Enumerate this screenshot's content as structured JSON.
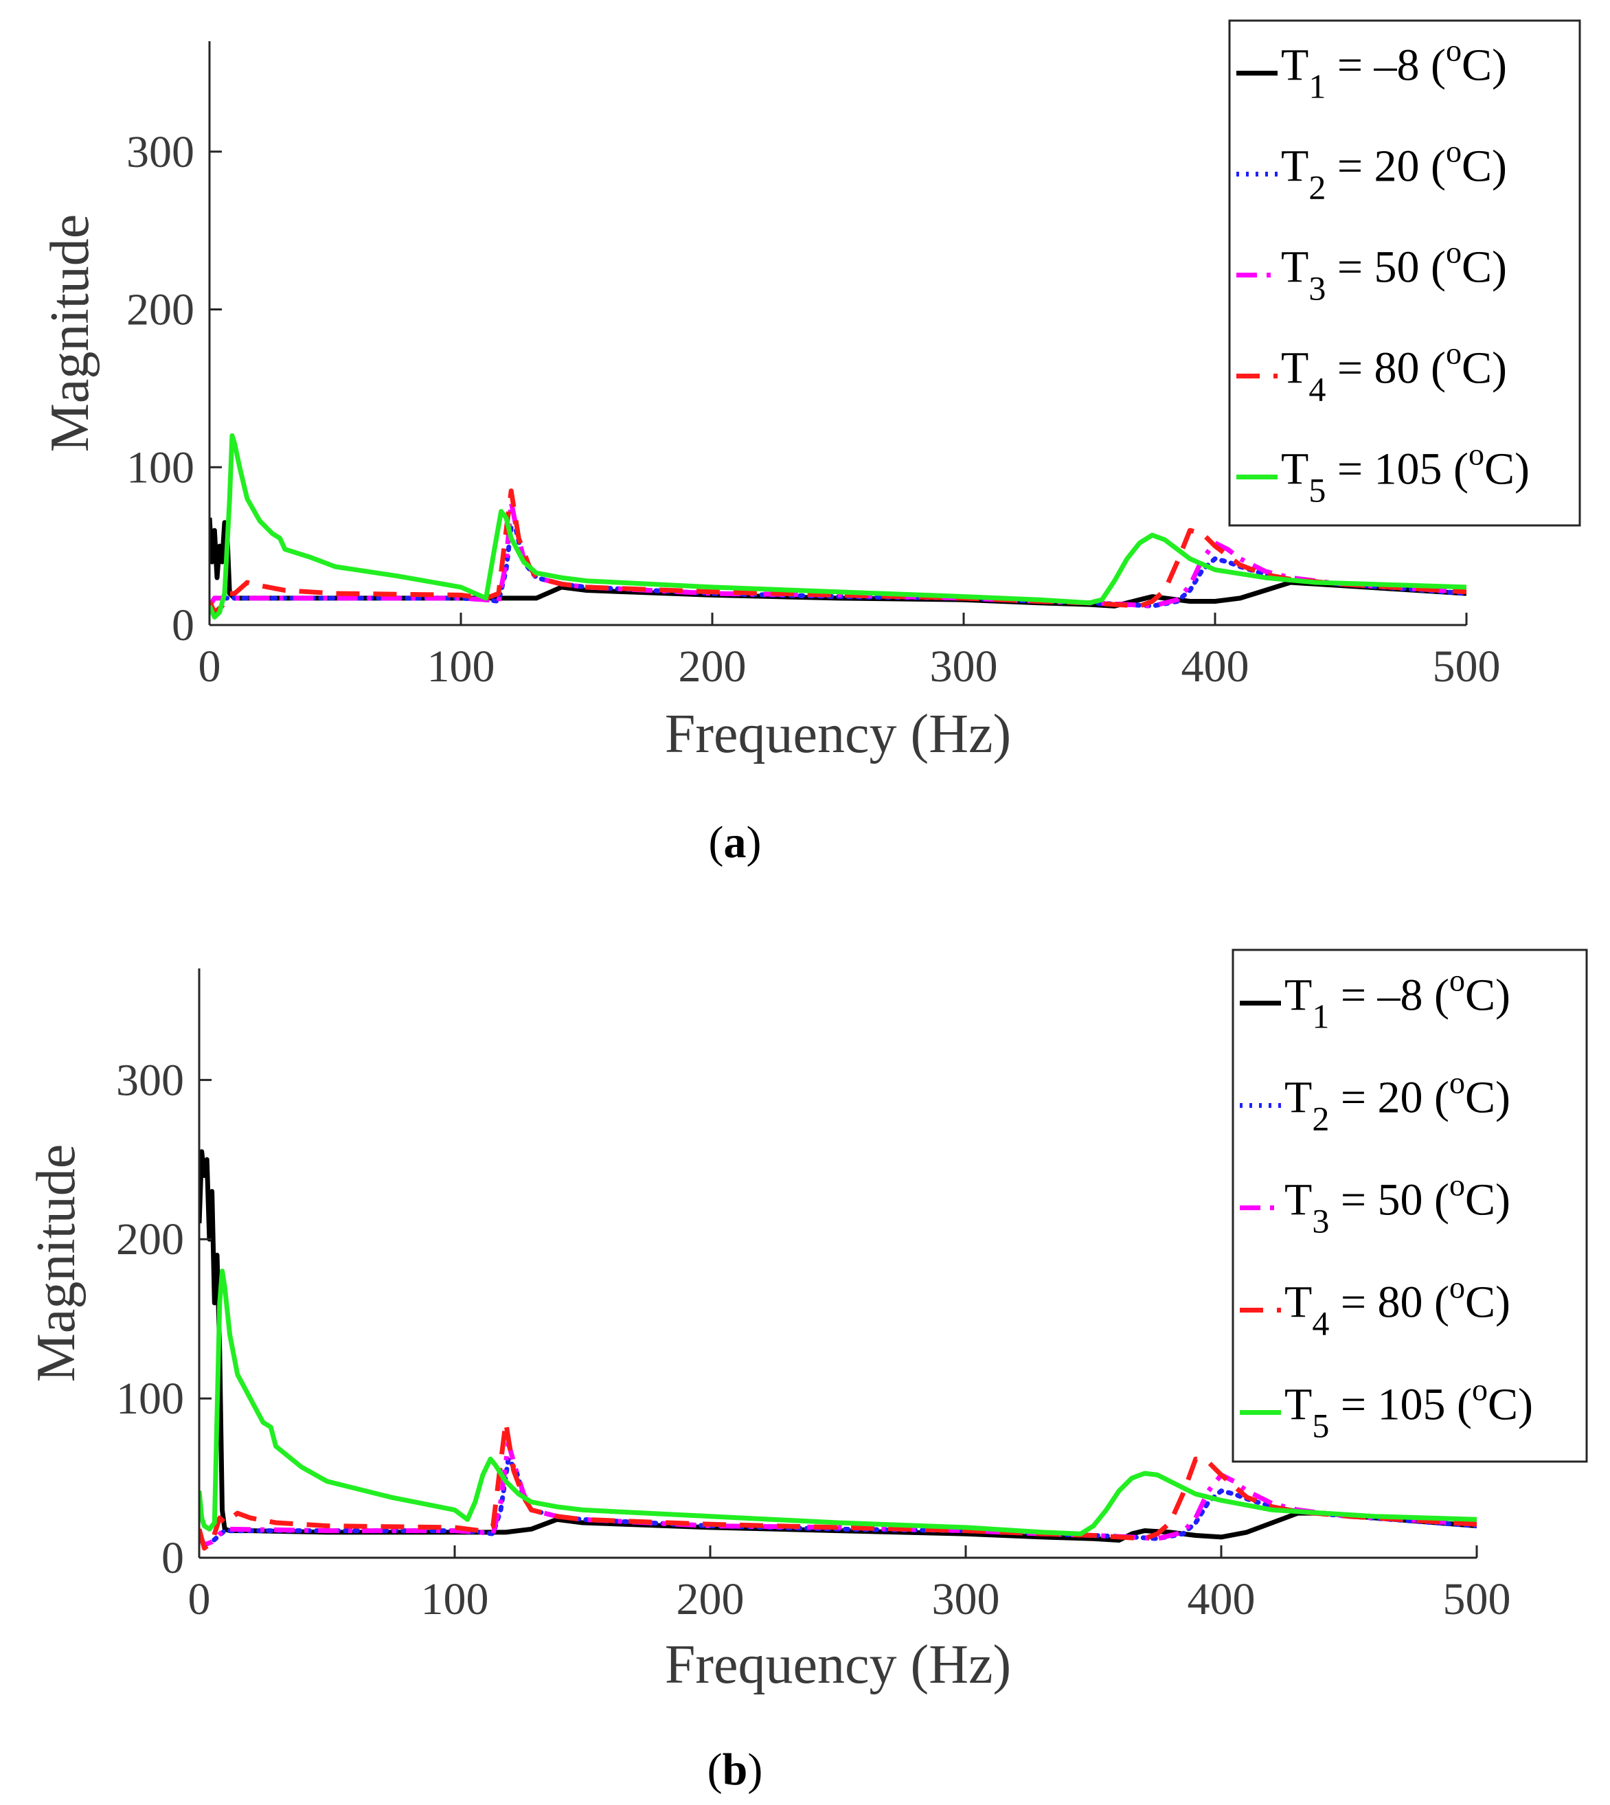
{
  "chart_data": [
    {
      "type": "line",
      "panel": "a",
      "caption_open": "(",
      "caption_letter": "a",
      "caption_close": ")",
      "xlabel": "Frequency (Hz)",
      "ylabel": "Magnitude",
      "xlim": [
        0,
        500
      ],
      "ylim": [
        0,
        370
      ],
      "xticks": [
        0,
        100,
        200,
        300,
        400,
        500
      ],
      "yticks": [
        0,
        100,
        200,
        300
      ],
      "grid": false,
      "legend_position": "top-right",
      "series": [
        {
          "key": "t1",
          "legend_prefix": "T",
          "legend_sub": "1",
          "legend_mid": " = –8 (",
          "legend_sup": "o",
          "legend_suffix": "C)",
          "color": "#000000",
          "style": "solid",
          "x": [
            0,
            1,
            2,
            3,
            4,
            5,
            6,
            7,
            8,
            10,
            20,
            50,
            80,
            100,
            110,
            120,
            130,
            140,
            150,
            200,
            250,
            300,
            330,
            350,
            360,
            370,
            375,
            380,
            390,
            400,
            410,
            420,
            430,
            440,
            460,
            500
          ],
          "y": [
            68,
            40,
            60,
            30,
            50,
            40,
            65,
            58,
            20,
            17,
            17,
            17,
            17,
            17,
            17,
            17,
            17,
            24,
            22,
            19,
            17,
            16,
            14,
            13,
            12,
            16,
            18,
            17,
            15,
            15,
            17,
            22,
            27,
            26,
            24,
            20
          ]
        },
        {
          "key": "t2",
          "legend_prefix": "T",
          "legend_sub": "2",
          "legend_mid": " = 20 (",
          "legend_sup": "o",
          "legend_suffix": "C)",
          "color": "#1f1fff",
          "style": "dotted",
          "x": [
            0,
            2,
            5,
            10,
            50,
            100,
            110,
            115,
            118,
            120,
            122,
            125,
            130,
            140,
            150,
            200,
            250,
            300,
            330,
            350,
            365,
            375,
            385,
            390,
            395,
            400,
            405,
            410,
            420,
            430,
            450,
            500
          ],
          "y": [
            12,
            17,
            17,
            17,
            17,
            17,
            16,
            15,
            35,
            62,
            60,
            40,
            30,
            26,
            24,
            20,
            18,
            17,
            15,
            14,
            13,
            12,
            15,
            22,
            35,
            42,
            40,
            37,
            32,
            29,
            26,
            20
          ]
        },
        {
          "key": "t3",
          "legend_prefix": "T",
          "legend_sub": "3",
          "legend_mid": " = 50 (",
          "legend_sup": "o",
          "legend_suffix": "C)",
          "color": "#ff00ff",
          "style": "dashdot",
          "x": [
            0,
            2,
            5,
            10,
            50,
            100,
            110,
            115,
            118,
            120,
            122,
            125,
            130,
            140,
            150,
            200,
            250,
            300,
            330,
            350,
            365,
            375,
            385,
            390,
            395,
            400,
            405,
            410,
            420,
            430,
            450,
            500
          ],
          "y": [
            12,
            17,
            17,
            17,
            17,
            17,
            16,
            15,
            40,
            78,
            62,
            42,
            30,
            26,
            24,
            20,
            19,
            17,
            15,
            14,
            13,
            12,
            16,
            25,
            42,
            52,
            48,
            42,
            34,
            30,
            26,
            21
          ]
        },
        {
          "key": "t4",
          "legend_prefix": "T",
          "legend_sub": "4",
          "legend_mid": " = 80 (",
          "legend_sup": "o",
          "legend_suffix": "C)",
          "color": "#ff1a1a",
          "style": "dashed",
          "x": [
            0,
            2,
            5,
            8,
            10,
            15,
            20,
            30,
            50,
            100,
            110,
            115,
            118,
            120,
            123,
            127,
            130,
            140,
            150,
            200,
            250,
            300,
            330,
            350,
            360,
            370,
            375,
            380,
            385,
            390,
            395,
            400,
            410,
            420,
            430,
            450,
            500
          ],
          "y": [
            15,
            8,
            12,
            20,
            20,
            27,
            25,
            22,
            20,
            19,
            17,
            20,
            60,
            85,
            55,
            38,
            30,
            26,
            24,
            21,
            19,
            17,
            15,
            14,
            13,
            12,
            15,
            22,
            40,
            60,
            58,
            50,
            38,
            32,
            29,
            26,
            21
          ]
        },
        {
          "key": "t5",
          "legend_prefix": "T",
          "legend_sub": "5",
          "legend_mid": " = 105 (",
          "legend_sup": "o",
          "legend_suffix": "C)",
          "color": "#22ee22",
          "style": "solid",
          "x": [
            0,
            2,
            4,
            6,
            8,
            9,
            10,
            12,
            15,
            20,
            25,
            28,
            30,
            40,
            50,
            75,
            100,
            110,
            113,
            116,
            118,
            120,
            125,
            130,
            140,
            150,
            200,
            250,
            300,
            330,
            350,
            355,
            360,
            365,
            370,
            375,
            380,
            385,
            390,
            400,
            420,
            440,
            460,
            500
          ],
          "y": [
            12,
            5,
            8,
            20,
            80,
            120,
            115,
            100,
            80,
            66,
            58,
            55,
            48,
            43,
            37,
            31,
            24,
            17,
            45,
            72,
            68,
            55,
            40,
            33,
            30,
            28,
            24,
            21,
            18,
            16,
            14,
            16,
            28,
            42,
            52,
            57,
            54,
            48,
            42,
            35,
            30,
            27,
            26,
            24
          ]
        }
      ]
    },
    {
      "type": "line",
      "panel": "b",
      "caption_open": "(",
      "caption_letter": "b",
      "caption_close": ")",
      "xlabel": "Frequency (Hz)",
      "ylabel": "Magnitude",
      "xlim": [
        0,
        500
      ],
      "ylim": [
        0,
        370
      ],
      "xticks": [
        0,
        100,
        200,
        300,
        400,
        500
      ],
      "yticks": [
        0,
        100,
        200,
        300
      ],
      "grid": false,
      "legend_position": "top-right",
      "series": [
        {
          "key": "t1",
          "legend_prefix": "T",
          "legend_sub": "1",
          "legend_mid": " = –8 (",
          "legend_sup": "o",
          "legend_suffix": "C)",
          "color": "#000000",
          "style": "solid",
          "x": [
            0,
            1,
            2,
            3,
            4,
            5,
            6,
            7,
            8,
            9,
            10,
            12,
            20,
            50,
            80,
            100,
            110,
            120,
            130,
            140,
            150,
            200,
            250,
            300,
            330,
            350,
            360,
            365,
            370,
            380,
            390,
            400,
            410,
            420,
            430,
            440,
            460,
            500
          ],
          "y": [
            210,
            255,
            240,
            250,
            200,
            230,
            160,
            190,
            130,
            30,
            18,
            17,
            17,
            16,
            16,
            16,
            16,
            16,
            18,
            24,
            22,
            19,
            17,
            15,
            13,
            12,
            11,
            15,
            17,
            16,
            14,
            13,
            16,
            22,
            28,
            28,
            25,
            20
          ]
        },
        {
          "key": "t2",
          "legend_prefix": "T",
          "legend_sub": "2",
          "legend_mid": " = 20 (",
          "legend_sup": "o",
          "legend_suffix": "C)",
          "color": "#1f1fff",
          "style": "dotted",
          "x": [
            0,
            2,
            5,
            10,
            50,
            100,
            110,
            115,
            118,
            121,
            124,
            127,
            130,
            140,
            150,
            200,
            250,
            300,
            330,
            350,
            365,
            375,
            385,
            390,
            395,
            400,
            405,
            410,
            420,
            430,
            450,
            500
          ],
          "y": [
            12,
            8,
            10,
            17,
            17,
            17,
            16,
            15,
            30,
            62,
            55,
            38,
            30,
            26,
            24,
            20,
            18,
            17,
            15,
            14,
            13,
            12,
            15,
            22,
            35,
            42,
            40,
            37,
            32,
            29,
            26,
            20
          ]
        },
        {
          "key": "t3",
          "legend_prefix": "T",
          "legend_sub": "3",
          "legend_mid": " = 50 (",
          "legend_sup": "o",
          "legend_suffix": "C)",
          "color": "#ff00ff",
          "style": "dashdot",
          "x": [
            0,
            2,
            5,
            10,
            50,
            100,
            110,
            115,
            118,
            121,
            124,
            127,
            130,
            140,
            150,
            200,
            250,
            300,
            330,
            350,
            365,
            375,
            385,
            390,
            395,
            400,
            405,
            410,
            420,
            430,
            450,
            500
          ],
          "y": [
            15,
            8,
            10,
            18,
            17,
            17,
            16,
            15,
            35,
            72,
            55,
            40,
            30,
            26,
            24,
            20,
            19,
            17,
            15,
            14,
            13,
            12,
            16,
            25,
            42,
            52,
            48,
            42,
            34,
            30,
            26,
            21
          ]
        },
        {
          "key": "t4",
          "legend_prefix": "T",
          "legend_sub": "4",
          "legend_mid": " = 80 (",
          "legend_sup": "o",
          "legend_suffix": "C)",
          "color": "#ff1a1a",
          "style": "dashed",
          "x": [
            0,
            2,
            5,
            8,
            10,
            15,
            20,
            30,
            50,
            100,
            110,
            115,
            118,
            120,
            123,
            127,
            130,
            140,
            150,
            200,
            250,
            300,
            330,
            350,
            360,
            370,
            375,
            380,
            385,
            390,
            395,
            400,
            410,
            420,
            430,
            450,
            500
          ],
          "y": [
            18,
            6,
            10,
            25,
            22,
            28,
            25,
            22,
            20,
            19,
            17,
            20,
            60,
            85,
            55,
            38,
            30,
            26,
            24,
            21,
            19,
            17,
            15,
            14,
            13,
            12,
            15,
            22,
            40,
            62,
            60,
            52,
            38,
            32,
            29,
            26,
            21
          ]
        },
        {
          "key": "t5",
          "legend_prefix": "T",
          "legend_sub": "5",
          "legend_mid": " = 105 (",
          "legend_sup": "o",
          "legend_suffix": "C)",
          "color": "#22ee22",
          "style": "solid",
          "x": [
            0,
            1,
            2,
            4,
            6,
            8,
            9,
            10,
            12,
            15,
            20,
            25,
            28,
            30,
            40,
            50,
            75,
            100,
            105,
            108,
            111,
            114,
            116,
            120,
            125,
            130,
            140,
            150,
            200,
            250,
            300,
            330,
            345,
            350,
            355,
            360,
            365,
            370,
            375,
            380,
            385,
            390,
            400,
            420,
            440,
            460,
            500
          ],
          "y": [
            42,
            25,
            20,
            18,
            22,
            160,
            180,
            170,
            140,
            115,
            100,
            85,
            82,
            70,
            57,
            48,
            38,
            30,
            24,
            35,
            52,
            62,
            58,
            48,
            40,
            35,
            32,
            30,
            26,
            22,
            19,
            16,
            15,
            20,
            30,
            42,
            50,
            53,
            52,
            48,
            44,
            40,
            36,
            30,
            28,
            26,
            24
          ]
        }
      ]
    }
  ]
}
